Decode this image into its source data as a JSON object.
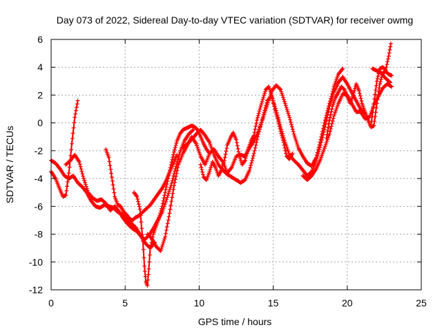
{
  "chart_data": {
    "type": "scatter",
    "title": "Day 073 of 2022, Sidereal Day-to-day VTEC variation (SDTVAR) for receiver owmg",
    "xlabel": "GPS time / hours",
    "ylabel": "SDTVAR / TECUs",
    "xlim": [
      0,
      25
    ],
    "ylim": [
      -12,
      6
    ],
    "xticks": [
      "0",
      "5",
      "10",
      "15",
      "20",
      "25"
    ],
    "yticks": [
      "-12",
      "-10",
      "-8",
      "-6",
      "-4",
      "-2",
      "0",
      "2",
      "4",
      "6"
    ],
    "grid": true,
    "marker": "plus",
    "color": "#ff0000",
    "series": [
      {
        "name": "s1",
        "x": [
          0.0,
          0.3,
          0.6,
          0.9,
          1.2,
          1.5,
          1.8,
          2.1,
          2.4,
          2.7,
          3.0,
          3.3,
          3.6,
          3.9,
          4.2,
          4.5,
          4.8,
          5.1,
          5.4,
          5.7,
          6.0,
          6.3,
          6.6,
          6.9,
          7.2,
          7.5,
          7.8,
          8.1,
          8.4,
          8.7,
          9.0,
          9.3,
          9.6
        ],
        "y": [
          -2.7,
          -2.9,
          -3.3,
          -3.8,
          -4.0,
          -3.8,
          -4.3,
          -4.6,
          -5.0,
          -5.6,
          -6.0,
          -6.1,
          -5.9,
          -6.0,
          -6.1,
          -6.4,
          -6.6,
          -6.9,
          -7.2,
          -7.5,
          -8.0,
          -8.4,
          -8.1,
          -7.6,
          -7.0,
          -6.4,
          -5.5,
          -4.5,
          -3.3,
          -2.1,
          -1.3,
          -0.8,
          -0.5
        ]
      },
      {
        "name": "s2",
        "x": [
          0.0,
          0.3,
          0.6,
          0.8,
          1.0,
          1.2,
          1.4,
          1.6,
          1.8
        ],
        "y": [
          -3.5,
          -4.0,
          -4.8,
          -5.3,
          -5.2,
          -3.6,
          -1.5,
          0.4,
          1.6
        ]
      },
      {
        "name": "s3",
        "x": [
          1.0,
          1.3,
          1.6,
          1.9,
          2.2,
          2.5,
          2.8,
          3.1,
          3.4,
          3.7,
          4.0,
          4.3,
          4.6,
          4.9,
          5.2,
          5.5,
          5.8,
          6.1,
          6.4,
          6.7,
          7.0
        ],
        "y": [
          -3.0,
          -2.7,
          -2.3,
          -2.8,
          -4.0,
          -5.0,
          -5.4,
          -5.6,
          -5.5,
          -5.8,
          -6.3,
          -6.0,
          -6.4,
          -6.9,
          -7.3,
          -7.6,
          -7.8,
          -8.2,
          -8.7,
          -9.0,
          -8.6
        ]
      },
      {
        "name": "s4",
        "x": [
          3.7,
          3.9,
          4.1,
          4.3,
          4.5,
          4.7,
          4.9,
          5.1,
          5.3,
          5.5,
          5.7,
          5.9,
          6.1,
          6.3,
          6.5,
          6.7,
          6.9,
          7.1,
          7.3,
          7.5,
          7.7,
          7.9,
          8.1,
          8.3,
          8.5
        ],
        "y": [
          -1.9,
          -2.5,
          -3.9,
          -5.3,
          -5.9,
          -6.0,
          -6.4,
          -6.6,
          -6.9,
          -7.0,
          -6.8,
          -6.7,
          -6.5,
          -6.3,
          -6.1,
          -5.9,
          -5.6,
          -5.3,
          -5.0,
          -4.7,
          -4.3,
          -3.8,
          -3.3,
          -2.8,
          -2.3
        ]
      },
      {
        "name": "s5",
        "x": [
          5.6,
          5.8,
          6.0,
          6.2,
          6.3,
          6.4,
          6.5,
          6.6,
          6.7,
          6.9,
          7.1,
          7.3,
          7.5,
          7.7,
          7.9,
          8.1,
          8.3,
          8.5,
          8.7,
          8.9,
          9.1,
          9.3,
          9.5,
          9.7,
          9.9,
          10.1,
          10.3,
          10.5,
          10.7
        ],
        "y": [
          -5.0,
          -5.3,
          -6.2,
          -8.5,
          -10.3,
          -11.4,
          -11.7,
          -10.5,
          -9.0,
          -8.0,
          -7.4,
          -6.8,
          -6.0,
          -5.0,
          -4.0,
          -3.0,
          -2.1,
          -1.3,
          -0.8,
          -0.5,
          -0.4,
          -0.3,
          -0.2,
          -0.3,
          -0.5,
          -1.0,
          -1.5,
          -1.9,
          -2.2
        ]
      },
      {
        "name": "s6",
        "x": [
          6.5,
          6.8,
          7.1,
          7.4,
          7.7,
          8.0,
          8.3,
          8.6,
          8.9,
          9.2,
          9.5,
          9.8,
          10.1,
          10.4,
          10.7,
          11.0,
          11.3,
          11.6,
          11.9,
          12.2,
          12.5,
          12.8,
          13.1,
          13.4,
          13.7,
          14.0,
          14.3,
          14.6,
          14.9,
          15.2,
          15.5,
          15.8,
          16.1,
          16.4,
          16.7,
          17.0,
          17.3,
          17.6,
          17.9,
          18.2,
          18.5,
          18.8,
          19.1,
          19.4,
          19.7
        ],
        "y": [
          -8.0,
          -8.3,
          -8.9,
          -9.2,
          -8.2,
          -6.5,
          -4.5,
          -3.0,
          -2.2,
          -1.6,
          -1.0,
          -1.5,
          -2.4,
          -3.0,
          -2.2,
          -1.9,
          -2.4,
          -2.8,
          -3.6,
          -3.2,
          -2.4,
          -2.3,
          -2.4,
          -1.8,
          -1.3,
          -0.6,
          0.3,
          1.3,
          2.3,
          2.7,
          2.4,
          1.4,
          0.4,
          -0.8,
          -1.8,
          -2.4,
          -2.9,
          -3.1,
          -2.5,
          -1.2,
          0.2,
          1.4,
          2.6,
          3.5,
          3.9
        ]
      },
      {
        "name": "s7",
        "x": [
          8.9,
          9.2,
          9.5,
          9.8,
          10.1,
          10.4,
          10.7,
          11.0,
          11.3,
          11.6,
          11.9,
          12.2,
          12.5,
          12.8,
          13.1,
          13.4,
          13.7,
          14.0,
          14.3,
          14.6,
          14.9,
          15.2,
          15.5,
          15.8,
          16.1,
          16.4,
          16.7,
          17.0,
          17.3,
          17.6,
          17.9,
          18.2,
          18.5,
          18.8,
          19.1,
          19.4,
          19.7,
          20.0,
          20.3,
          20.6,
          20.9,
          21.2
        ],
        "y": [
          -1.8,
          -1.5,
          -1.2,
          -0.8,
          -0.5,
          -0.9,
          -1.4,
          -2.3,
          -3.0,
          -3.4,
          -3.7,
          -3.9,
          -4.1,
          -4.3,
          -4.1,
          -3.4,
          -2.2,
          -0.8,
          0.4,
          1.6,
          1.9,
          0.9,
          -0.3,
          -1.4,
          -2.3,
          -2.7,
          -3.0,
          -3.4,
          -3.8,
          -3.5,
          -2.7,
          -1.6,
          -0.3,
          1.2,
          2.2,
          2.9,
          3.3,
          2.8,
          2.2,
          1.6,
          1.0,
          0.7
        ]
      },
      {
        "name": "s8",
        "x": [
          10.1,
          10.3,
          10.5,
          10.7,
          10.9,
          11.1,
          11.3,
          11.5,
          11.7,
          11.9,
          12.1,
          12.3,
          12.5,
          12.7,
          12.9,
          13.1,
          13.3,
          13.5,
          13.7,
          13.9,
          14.1,
          14.3,
          14.5,
          14.7,
          14.9,
          15.1,
          15.3,
          15.5,
          15.7,
          15.9,
          16.1,
          16.3
        ],
        "y": [
          -3.0,
          -3.9,
          -4.1,
          -3.5,
          -2.8,
          -3.2,
          -3.8,
          -3.4,
          -2.7,
          -1.6,
          -1.1,
          -0.7,
          -1.2,
          -2.3,
          -3.0,
          -2.7,
          -1.9,
          -1.3,
          -0.9,
          0.2,
          1.0,
          1.7,
          2.4,
          2.6,
          2.0,
          1.0,
          0.3,
          -0.6,
          -1.4,
          -2.4,
          -2.6,
          -2.2
        ]
      },
      {
        "name": "s9",
        "x": [
          17.0,
          17.3,
          17.6,
          17.9,
          18.2,
          18.5,
          18.8,
          19.1,
          19.4,
          19.7,
          20.0,
          20.3,
          20.6,
          20.9,
          21.2,
          21.5,
          21.8,
          22.1,
          22.4,
          22.7,
          23.0
        ],
        "y": [
          -3.8,
          -4.1,
          -3.8,
          -3.3,
          -2.6,
          -1.7,
          -0.8,
          0.5,
          1.4,
          2.1,
          2.0,
          1.4,
          0.8,
          0.8,
          0.3,
          0.4,
          1.3,
          1.9,
          2.5,
          2.8,
          2.6
        ]
      },
      {
        "name": "s10",
        "x": [
          18.6,
          18.8,
          19.0,
          19.2,
          19.4,
          19.6,
          19.8,
          20.0,
          20.2,
          20.4,
          20.6,
          20.8,
          21.0,
          21.2,
          21.4,
          21.6,
          21.8,
          22.0,
          22.2,
          22.4,
          22.6,
          22.8,
          23.0
        ],
        "y": [
          -1.1,
          0.2,
          1.2,
          1.8,
          2.2,
          2.6,
          2.4,
          1.9,
          1.4,
          2.0,
          2.8,
          2.3,
          1.4,
          0.8,
          0.2,
          -0.3,
          -0.2,
          1.4,
          2.8,
          3.6,
          3.7,
          3.5,
          3.4
        ]
      },
      {
        "name": "s11",
        "x": [
          21.6,
          21.8,
          22.0,
          22.2,
          22.4,
          22.6,
          22.8,
          22.95
        ],
        "y": [
          -0.2,
          1.4,
          3.0,
          3.9,
          4.0,
          3.8,
          4.8,
          5.7
        ]
      },
      {
        "name": "s12",
        "x": [
          21.7,
          21.9,
          22.1,
          22.3,
          22.5,
          22.7,
          22.9
        ],
        "y": [
          3.9,
          3.8,
          3.7,
          3.6,
          3.3,
          3.1,
          2.9
        ]
      }
    ]
  }
}
